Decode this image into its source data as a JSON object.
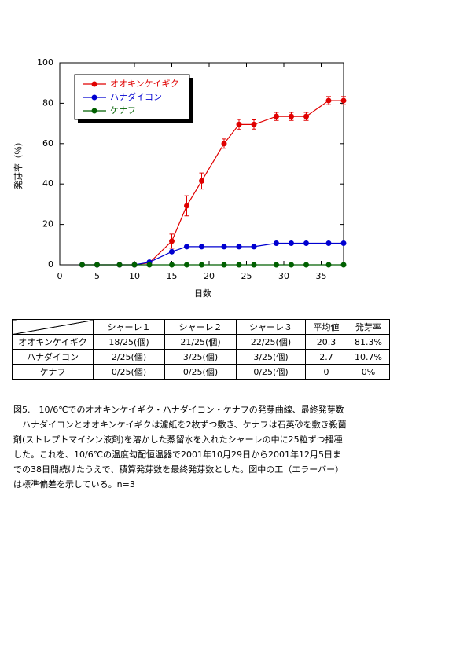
{
  "chart_data": {
    "type": "line",
    "xlabel": "日数",
    "ylabel": "発芽率（％）",
    "x": [
      3,
      5,
      8,
      10,
      12,
      15,
      17,
      19,
      22,
      24,
      26,
      29,
      31,
      33,
      36,
      38
    ],
    "series": [
      {
        "name": "オオキンケイギク",
        "color": "#e00000",
        "values": [
          0,
          0,
          0,
          0,
          1,
          11.7,
          29.2,
          41.5,
          60,
          69.5,
          69.5,
          73.5,
          73.5,
          73.5,
          81.3,
          81.3
        ],
        "errors": [
          0,
          0,
          0,
          0,
          0,
          3.5,
          5,
          4,
          2.3,
          2.5,
          2.3,
          2,
          2,
          2,
          2,
          2
        ]
      },
      {
        "name": "ハナダイコン",
        "color": "#0000d0",
        "values": [
          0,
          0,
          0,
          0,
          1.3,
          6.5,
          9,
          9,
          9,
          9,
          9,
          10.7,
          10.7,
          10.7,
          10.7,
          10.7
        ]
      },
      {
        "name": "ケナフ",
        "color": "#006000",
        "values": [
          0,
          0,
          0,
          0,
          0,
          0,
          0,
          0,
          0,
          0,
          0,
          0,
          0,
          0,
          0,
          0
        ]
      }
    ],
    "xlim": [
      0,
      38
    ],
    "xticks": [
      0,
      5,
      10,
      15,
      20,
      25,
      30,
      35
    ],
    "ylim": [
      0,
      100
    ],
    "yticks": [
      0,
      20,
      40,
      60,
      80,
      100
    ],
    "legend": "upper left"
  },
  "table": {
    "header": [
      "シャーレ１",
      "シャーレ２",
      "シャーレ３",
      "平均値",
      "発芽率"
    ],
    "rows": [
      [
        "オオキンケイギク",
        "18/25(個)",
        "21/25(個)",
        "22/25(個)",
        "20.3",
        "81.3%"
      ],
      [
        "ハナダイコン",
        "2/25(個)",
        "3/25(個)",
        "3/25(個)",
        "2.7",
        "10.7%"
      ],
      [
        "ケナフ",
        "0/25(個)",
        "0/25(個)",
        "0/25(個)",
        "0",
        "0%"
      ]
    ]
  },
  "caption": [
    "図5.　10/6℃でのオオキンケイギク・ハナダイコン・ケナフの発芽曲線、最終発芽数",
    "　ハナダイコンとオオキンケイギクは濾紙を2枚ずつ敷き、ケナフは石英砂を敷き殺菌",
    "剤(ストレプトマイシン液剤)を溶かした蒸留水を入れたシャーレの中に25粒ずつ播種",
    "した。これを、10/6℃の温度勾配恒温器で2001年10月29日から2001年12月5日ま",
    "での38日間続けたうえで、積算発芽数を最終発芽数とした。図中の工（エラーバー）",
    "は標準偏差を示している。n=3"
  ]
}
